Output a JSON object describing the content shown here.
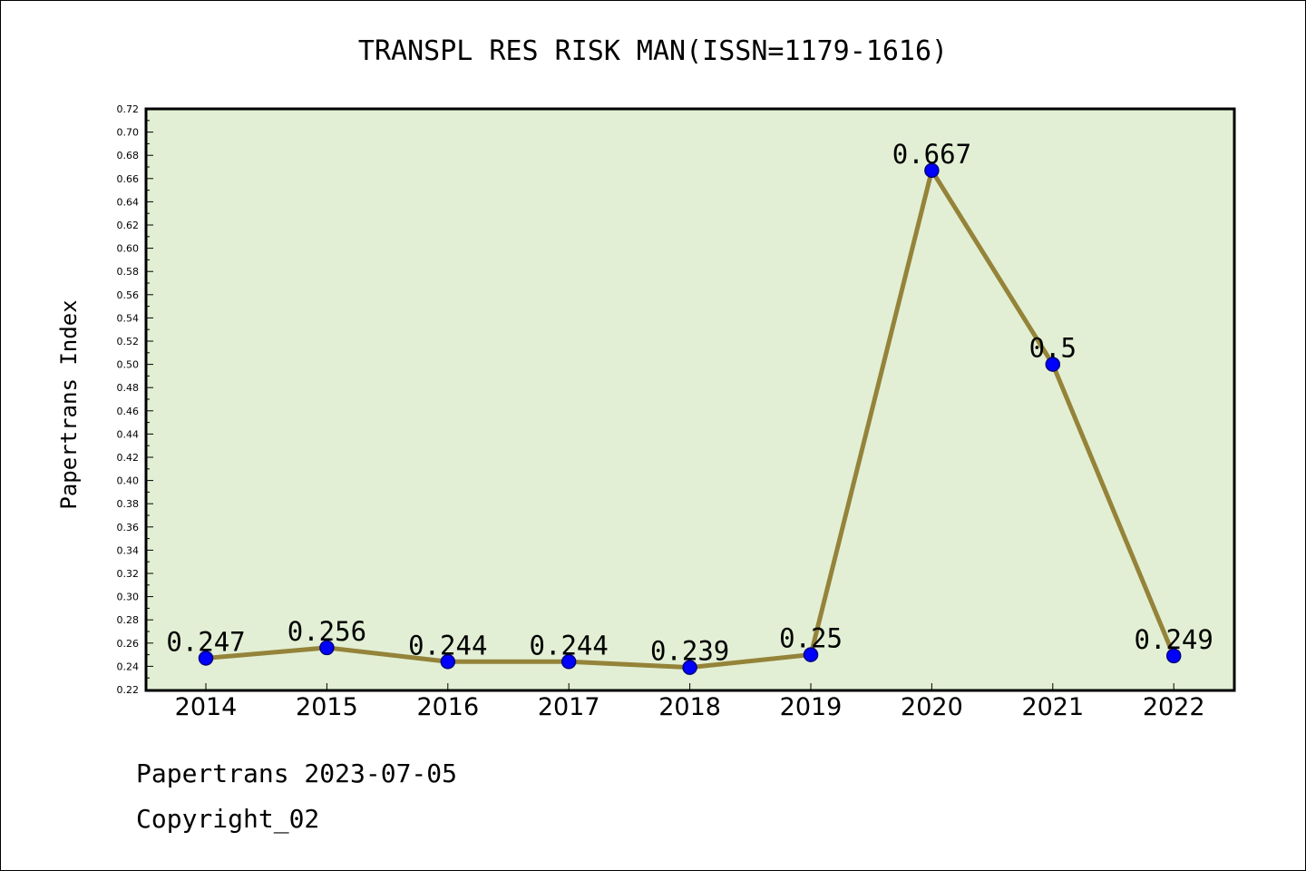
{
  "chart_data": {
    "type": "line",
    "title": "TRANSPL RES RISK MAN(ISSN=1179-1616)",
    "xlabel": "",
    "ylabel": "Papertrans Index",
    "categories": [
      "2014",
      "2015",
      "2016",
      "2017",
      "2018",
      "2019",
      "2020",
      "2021",
      "2022"
    ],
    "series": [
      {
        "values": [
          0.247,
          0.256,
          0.244,
          0.244,
          0.239,
          0.25,
          0.667,
          0.5,
          0.249
        ],
        "data_labels": [
          "0.247",
          "0.256",
          "0.244",
          "0.244",
          "0.239",
          "0.25",
          "0.667",
          "0.5",
          "0.249"
        ]
      }
    ],
    "ylim": [
      0.22,
      0.72
    ],
    "yticks": [
      "0.22",
      "0.24",
      "0.26",
      "0.28",
      "0.30",
      "0.32",
      "0.34",
      "0.36",
      "0.38",
      "0.40",
      "0.42",
      "0.44",
      "0.46",
      "0.48",
      "0.50",
      "0.52",
      "0.54",
      "0.56",
      "0.58",
      "0.60",
      "0.62",
      "0.64",
      "0.66",
      "0.68",
      "0.70",
      "0.72"
    ],
    "grid": false,
    "legend": "none",
    "colors": {
      "plot_background": "#e2efd4",
      "line": "#948339",
      "marker_fill": "#0000ff",
      "marker_edge": "#000080",
      "axis": "#000000"
    }
  },
  "footer": {
    "date_line": "Papertrans 2023-07-05",
    "copyright_line": "Copyright_02"
  }
}
